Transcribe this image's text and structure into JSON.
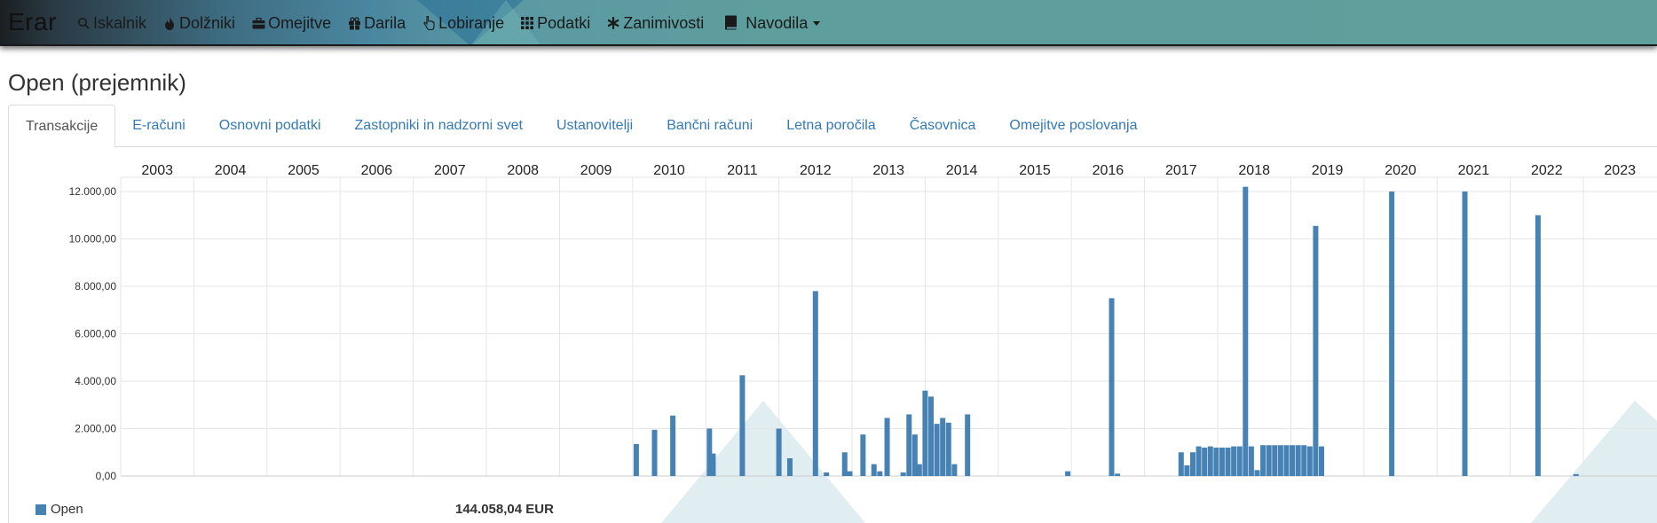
{
  "brand": "Erar",
  "nav": [
    {
      "label": "Iskalnik",
      "icon": "search-icon"
    },
    {
      "label": "Dolžniki",
      "icon": "fire-icon"
    },
    {
      "label": "Omejitve",
      "icon": "briefcase-icon"
    },
    {
      "label": "Darila",
      "icon": "gift-icon"
    },
    {
      "label": "Lobiranje",
      "icon": "hand-icon"
    },
    {
      "label": "Podatki",
      "icon": "grid-icon"
    },
    {
      "label": "Zanimivosti",
      "icon": "asterisk-icon"
    },
    {
      "label": "Navodila",
      "icon": "book-icon"
    }
  ],
  "page_title": "Open (prejemnik)",
  "tabs": [
    "Transakcije",
    "E-računi",
    "Osnovni podatki",
    "Zastopniki in nadzorni svet",
    "Ustanovitelji",
    "Bančni računi",
    "Letna poročila",
    "Časovnica",
    "Omejitve poslovanja"
  ],
  "active_tab": "Transakcije",
  "legend": {
    "label": "Open",
    "total": "144.058,04 EUR"
  },
  "colors": {
    "bar": "#4682b4",
    "topbar_teal": "#5f9f9c",
    "link": "#337ab7"
  },
  "chart_data": {
    "type": "bar",
    "series": [
      {
        "name": "Open"
      }
    ],
    "years": [
      "2003",
      "2004",
      "2005",
      "2006",
      "2007",
      "2008",
      "2009",
      "2010",
      "2011",
      "2012",
      "2013",
      "2014",
      "2015",
      "2016",
      "2017",
      "2018",
      "2019",
      "2020",
      "2021",
      "2022",
      "2023"
    ],
    "y_ticks": [
      "12.000,00",
      "10.000,00",
      "8.000,00",
      "6.000,00",
      "4.000,00",
      "2.000,00",
      "0,00"
    ],
    "ylim": [
      0,
      12600
    ],
    "grid": true,
    "bars": [
      {
        "t": 2010.05,
        "v": 1350
      },
      {
        "t": 2010.3,
        "v": 1950
      },
      {
        "t": 2010.55,
        "v": 2550
      },
      {
        "t": 2011.05,
        "v": 2000
      },
      {
        "t": 2011.1,
        "v": 950
      },
      {
        "t": 2011.5,
        "v": 4250
      },
      {
        "t": 2012.0,
        "v": 2000
      },
      {
        "t": 2012.15,
        "v": 750
      },
      {
        "t": 2012.5,
        "v": 7800
      },
      {
        "t": 2012.65,
        "v": 150
      },
      {
        "t": 2012.9,
        "v": 1000
      },
      {
        "t": 2012.97,
        "v": 200
      },
      {
        "t": 2013.15,
        "v": 1750
      },
      {
        "t": 2013.3,
        "v": 500
      },
      {
        "t": 2013.38,
        "v": 200
      },
      {
        "t": 2013.48,
        "v": 2450
      },
      {
        "t": 2013.7,
        "v": 150
      },
      {
        "t": 2013.78,
        "v": 2600
      },
      {
        "t": 2013.86,
        "v": 1750
      },
      {
        "t": 2013.92,
        "v": 500
      },
      {
        "t": 2014.0,
        "v": 3600
      },
      {
        "t": 2014.08,
        "v": 3350
      },
      {
        "t": 2014.16,
        "v": 2200
      },
      {
        "t": 2014.24,
        "v": 2450
      },
      {
        "t": 2014.32,
        "v": 2250
      },
      {
        "t": 2014.4,
        "v": 500
      },
      {
        "t": 2014.58,
        "v": 2600
      },
      {
        "t": 2015.95,
        "v": 200
      },
      {
        "t": 2016.55,
        "v": 7500
      },
      {
        "t": 2016.63,
        "v": 100
      },
      {
        "t": 2017.5,
        "v": 1000
      },
      {
        "t": 2017.58,
        "v": 450
      },
      {
        "t": 2017.66,
        "v": 1000
      },
      {
        "t": 2017.74,
        "v": 1250
      },
      {
        "t": 2017.82,
        "v": 1200
      },
      {
        "t": 2017.9,
        "v": 1250
      },
      {
        "t": 2017.98,
        "v": 1200
      },
      {
        "t": 2018.06,
        "v": 1200
      },
      {
        "t": 2018.14,
        "v": 1200
      },
      {
        "t": 2018.22,
        "v": 1250
      },
      {
        "t": 2018.3,
        "v": 1250
      },
      {
        "t": 2018.38,
        "v": 12200
      },
      {
        "t": 2018.46,
        "v": 1250
      },
      {
        "t": 2018.54,
        "v": 250
      },
      {
        "t": 2018.62,
        "v": 1300
      },
      {
        "t": 2018.7,
        "v": 1300
      },
      {
        "t": 2018.78,
        "v": 1300
      },
      {
        "t": 2018.86,
        "v": 1300
      },
      {
        "t": 2018.94,
        "v": 1300
      },
      {
        "t": 2019.02,
        "v": 1300
      },
      {
        "t": 2019.1,
        "v": 1300
      },
      {
        "t": 2019.18,
        "v": 1300
      },
      {
        "t": 2019.26,
        "v": 1250
      },
      {
        "t": 2019.34,
        "v": 10550
      },
      {
        "t": 2019.42,
        "v": 1250
      },
      {
        "t": 2020.38,
        "v": 12000
      },
      {
        "t": 2021.38,
        "v": 12000
      },
      {
        "t": 2022.38,
        "v": 11000
      },
      {
        "t": 2022.9,
        "v": 80
      }
    ]
  }
}
